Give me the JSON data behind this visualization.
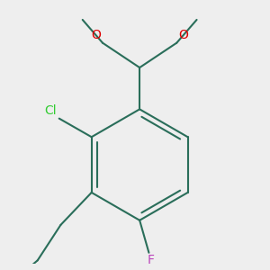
{
  "bg_color": "#eeeeee",
  "bond_color": "#2a6e5a",
  "bond_lw": 1.5,
  "dbo": 0.018,
  "colors": {
    "Cl": "#33cc33",
    "F": "#bb44bb",
    "O": "#dd0000"
  },
  "fs": 10,
  "fig_w": 3.0,
  "fig_h": 3.0,
  "dpi": 100
}
